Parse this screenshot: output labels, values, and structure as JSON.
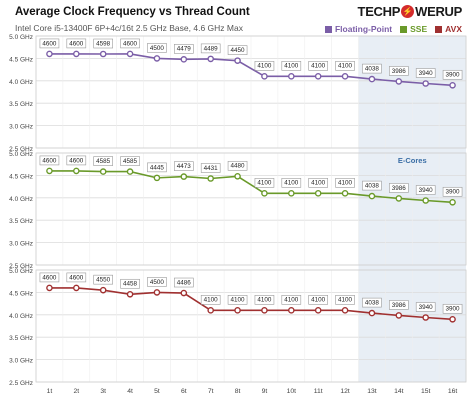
{
  "header": {
    "title": "Average Clock Frequency vs Thread Count",
    "subtitle": "Intel Core i5-13400F 6P+4c/16t 2.5 GHz Base, 4.6 GHz Max",
    "logo_part1": "TECHP",
    "logo_part2": "WERUP",
    "logo_bolt": "⚡"
  },
  "legend": [
    {
      "name": "Floating-Point",
      "color": "#7b5ea7"
    },
    {
      "name": "SSE",
      "color": "#6a9a2a"
    },
    {
      "name": "AVX",
      "color": "#a03030"
    }
  ],
  "ecores_label": "E-Cores",
  "chart_data": [
    {
      "type": "line",
      "series": [
        {
          "name": "Floating-Point",
          "color": "#7b5ea7",
          "values": [
            4600,
            4600,
            4598,
            4600,
            4500,
            4479,
            4489,
            4450,
            4100,
            4100,
            4100,
            4100,
            4038,
            3986,
            3940,
            3900
          ]
        }
      ],
      "categories": [
        "1t",
        "2t",
        "3t",
        "4t",
        "5t",
        "6t",
        "7t",
        "8t",
        "9t",
        "10t",
        "11t",
        "12t",
        "13t",
        "14t",
        "15t",
        "16t"
      ],
      "yticks": [
        "5.0 GHz",
        "4.5 GHz",
        "4.0 GHz",
        "3.5 GHz",
        "3.0 GHz",
        "2.5 GHz"
      ],
      "ylim": [
        2.5,
        5.0
      ],
      "grid": true
    },
    {
      "type": "line",
      "series": [
        {
          "name": "SSE",
          "color": "#6a9a2a",
          "values": [
            4600,
            4600,
            4585,
            4585,
            4445,
            4473,
            4431,
            4480,
            4100,
            4100,
            4100,
            4100,
            4038,
            3986,
            3940,
            3900
          ]
        }
      ],
      "categories": [
        "1t",
        "2t",
        "3t",
        "4t",
        "5t",
        "6t",
        "7t",
        "8t",
        "9t",
        "10t",
        "11t",
        "12t",
        "13t",
        "14t",
        "15t",
        "16t"
      ],
      "yticks": [
        "5.0 GHz",
        "4.5 GHz",
        "4.0 GHz",
        "3.5 GHz",
        "3.0 GHz",
        "2.5 GHz"
      ],
      "ylim": [
        2.5,
        5.0
      ],
      "grid": true
    },
    {
      "type": "line",
      "series": [
        {
          "name": "AVX",
          "color": "#a03030",
          "values": [
            4600,
            4600,
            4550,
            4458,
            4500,
            4486,
            4100,
            4100,
            4100,
            4100,
            4100,
            4100,
            4038,
            3986,
            3940,
            3900
          ]
        }
      ],
      "categories": [
        "1t",
        "2t",
        "3t",
        "4t",
        "5t",
        "6t",
        "7t",
        "8t",
        "9t",
        "10t",
        "11t",
        "12t",
        "13t",
        "14t",
        "15t",
        "16t"
      ],
      "yticks": [
        "5.0 GHz",
        "4.5 GHz",
        "4.0 GHz",
        "3.5 GHz",
        "3.0 GHz",
        "2.5 GHz"
      ],
      "ylim": [
        2.5,
        5.0
      ],
      "grid": true
    }
  ]
}
